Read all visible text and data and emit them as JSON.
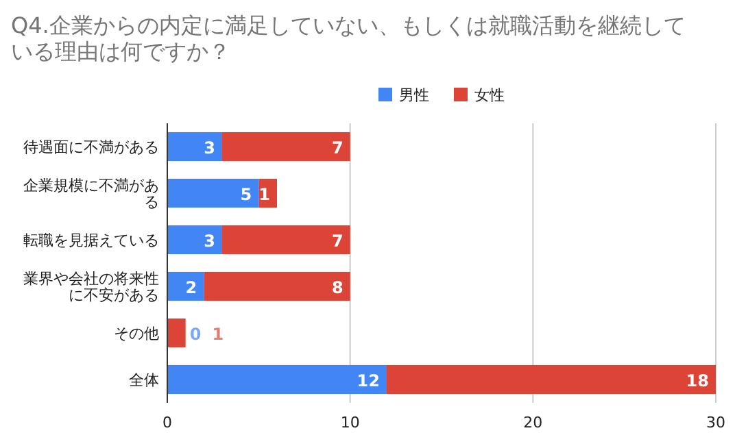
{
  "chart_data": {
    "type": "bar",
    "orientation": "horizontal",
    "stacked": true,
    "title": "Q4.企業からの内定に満足していない、もしくは就職活動を継続している理由は何ですか？",
    "categories": [
      "待遇面に不満がある",
      "企業規模に不満がある",
      "転職を見据えている",
      "業界や会社の将来性に不安がある",
      "その他",
      "全体"
    ],
    "series": [
      {
        "name": "男性",
        "color": "#4285f4",
        "values": [
          3,
          5,
          3,
          2,
          0,
          12
        ]
      },
      {
        "name": "女性",
        "color": "#db4437",
        "values": [
          7,
          1,
          7,
          8,
          1,
          18
        ]
      }
    ],
    "xlim": [
      0,
      30
    ],
    "xticks": [
      0,
      10,
      20,
      30
    ],
    "grid": "x",
    "legend": "top",
    "data_labels": true
  }
}
